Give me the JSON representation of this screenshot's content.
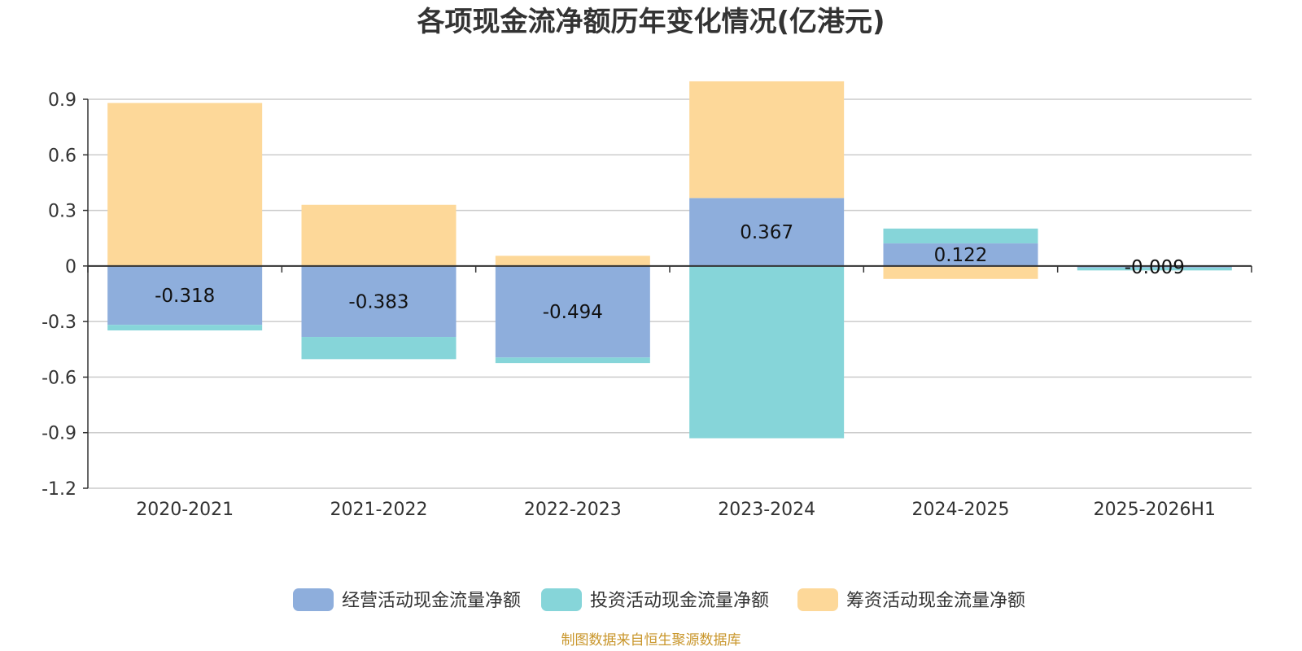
{
  "chart_data": {
    "type": "bar",
    "stacked": true,
    "title": "各项现金流净额历年变化情况(亿港元)",
    "categories": [
      "2020-2021",
      "2021-2022",
      "2022-2023",
      "2023-2024",
      "2024-2025",
      "2025-2026H1"
    ],
    "series": [
      {
        "name": "经营活动现金流量净额",
        "color": "#8eaedc",
        "values": [
          -0.318,
          -0.383,
          -0.494,
          0.367,
          0.122,
          -0.009
        ],
        "labels": [
          "-0.318",
          "-0.383",
          "-0.494",
          "0.367",
          "0.122",
          "-0.009"
        ]
      },
      {
        "name": "投资活动现金流量净额",
        "color": "#86d5d9",
        "values": [
          -0.03,
          -0.12,
          -0.03,
          -0.93,
          0.08,
          -0.015
        ]
      },
      {
        "name": "筹资活动现金流量净额",
        "color": "#fdd899",
        "values": [
          0.88,
          0.33,
          0.055,
          0.63,
          -0.07,
          0.0
        ]
      }
    ],
    "ylim": [
      -1.2,
      0.9
    ],
    "yticks": [
      "0.9",
      "0.6",
      "0.3",
      "0",
      "-0.3",
      "-0.6",
      "-0.9",
      "-1.2"
    ],
    "ytick_values": [
      0.9,
      0.6,
      0.3,
      0,
      -0.3,
      -0.6,
      -0.9,
      -1.2
    ],
    "grid": true,
    "legend_position": "bottom",
    "source": "制图数据来自恒生聚源数据库"
  }
}
